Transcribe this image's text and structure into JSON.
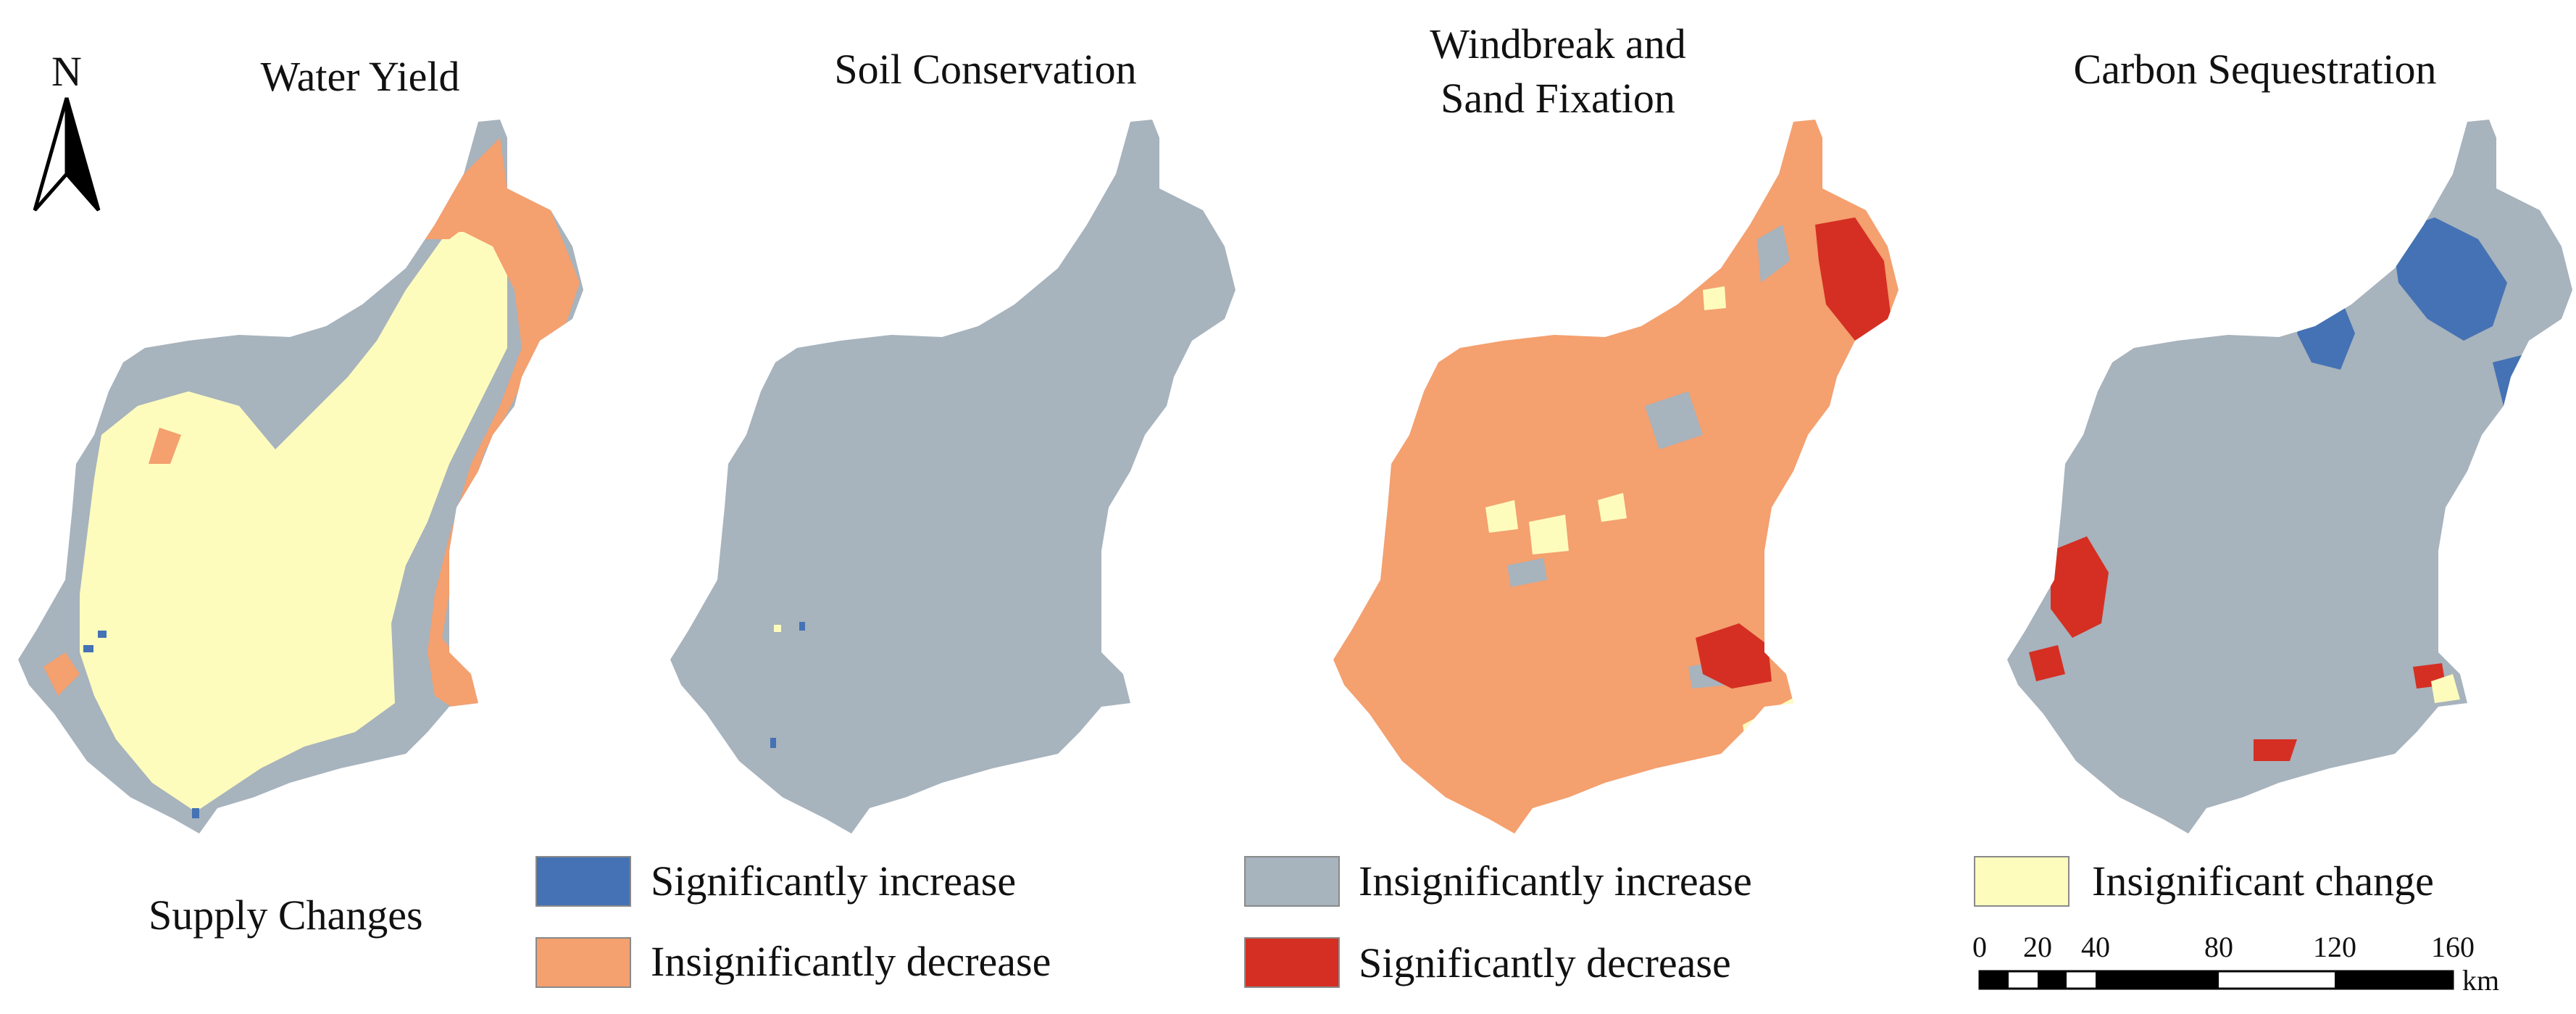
{
  "north_arrow": {
    "label": "N"
  },
  "panels": [
    {
      "title": "Water Yield"
    },
    {
      "title_lines": [
        "Soil Conservation"
      ]
    },
    {
      "title_lines": [
        "Windbreak and",
        "Sand Fixation"
      ]
    },
    {
      "title_lines": [
        "Carbon Sequestration"
      ]
    }
  ],
  "legend": {
    "title": "Supply Changes",
    "items": [
      {
        "label": "Significantly increase",
        "color": "#4472b4"
      },
      {
        "label": "Insignificantly decrease",
        "color": "#f4a06f"
      },
      {
        "label": "Insignificantly increase",
        "color": "#a7b3bd"
      },
      {
        "label": "Significantly decrease",
        "color": "#d52f23"
      },
      {
        "label": "Insignificant change",
        "color": "#fefcbd"
      }
    ]
  },
  "scale_bar": {
    "ticks": [
      "0",
      "20",
      "40",
      "80",
      "120",
      "160"
    ],
    "unit": "km"
  },
  "colors": {
    "significantly_increase": "#4472b4",
    "insignificantly_decrease": "#f4a06f",
    "insignificantly_increase": "#a7b3bd",
    "significantly_decrease": "#d52f23",
    "insignificant_change": "#fefcbd"
  }
}
